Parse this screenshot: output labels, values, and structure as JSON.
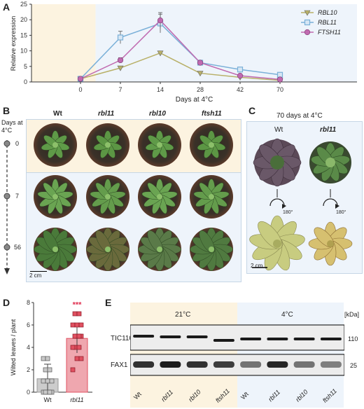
{
  "panels": {
    "a": "A",
    "b": "B",
    "c": "C",
    "d": "D",
    "e": "E"
  },
  "chart_data": {
    "type": "line",
    "categories": [
      "0",
      "7",
      "14",
      "28",
      "42",
      "70"
    ],
    "xlabel": "Days at 4°C",
    "ylabel": "Relative expression",
    "ylim": [
      0,
      25
    ],
    "yticks": [
      "0",
      "5",
      "10",
      "15",
      "20",
      "25"
    ],
    "series": [
      {
        "name": "RBL10",
        "color": "#b8b068",
        "marker": "triangle",
        "values": [
          1,
          4.5,
          9.3,
          2.8,
          1.5,
          0.5
        ],
        "err": [
          0.2,
          0.5,
          0.6,
          0.4,
          0.3,
          0.2
        ]
      },
      {
        "name": "RBL11",
        "color": "#7ab0d8",
        "marker": "square",
        "values": [
          1,
          14.3,
          18.8,
          6.2,
          4.0,
          2.3
        ],
        "err": [
          0.2,
          2.0,
          3.0,
          0.5,
          0.6,
          0.5
        ]
      },
      {
        "name": "FTSH11",
        "color": "#c06ab0",
        "marker": "circle",
        "values": [
          1,
          7.0,
          19.8,
          6.2,
          2.0,
          0.8
        ],
        "err": [
          0.2,
          0.8,
          2.5,
          0.5,
          0.5,
          0.3
        ]
      }
    ]
  },
  "panel_b": {
    "columns": [
      "Wt",
      "rbl11",
      "rbl10",
      "ftsh11"
    ],
    "timeline_label": "Days at 4°C",
    "timeline_days": [
      "0",
      "7",
      "56"
    ],
    "scale": "2 cm"
  },
  "panel_c": {
    "title": "70 days at 4°C",
    "columns": [
      "Wt",
      "rbl11"
    ],
    "rotation": "180°",
    "scale": "2 cm"
  },
  "bar_chart": {
    "type": "bar",
    "categories": [
      "Wt",
      "rbl11"
    ],
    "values": [
      1.2,
      4.8
    ],
    "ylabel": "Wilted leaves / plant",
    "ylim": [
      0,
      8
    ],
    "yticks": [
      "0",
      "2",
      "4",
      "6",
      "8"
    ],
    "significance": "***",
    "colors": [
      "#999999",
      "#e05060"
    ],
    "points_wt": [
      0,
      0,
      0,
      0,
      0,
      1,
      1,
      1,
      2,
      2,
      3,
      3
    ],
    "points_rbl11": [
      2,
      3,
      3,
      4,
      4,
      4,
      5,
      5,
      5,
      5,
      6,
      6,
      6,
      7,
      7
    ]
  },
  "panel_e": {
    "groups": [
      "21°C",
      "4°C"
    ],
    "unit": "[kDa]",
    "rows": [
      {
        "label": "TIC110",
        "kda": "110"
      },
      {
        "label": "FAX1",
        "kda": "25"
      }
    ],
    "lanes": [
      "Wt",
      "rbl11",
      "rbl10",
      "ftsh11",
      "Wt",
      "rbl11",
      "rbl10",
      "ftsh11"
    ]
  }
}
